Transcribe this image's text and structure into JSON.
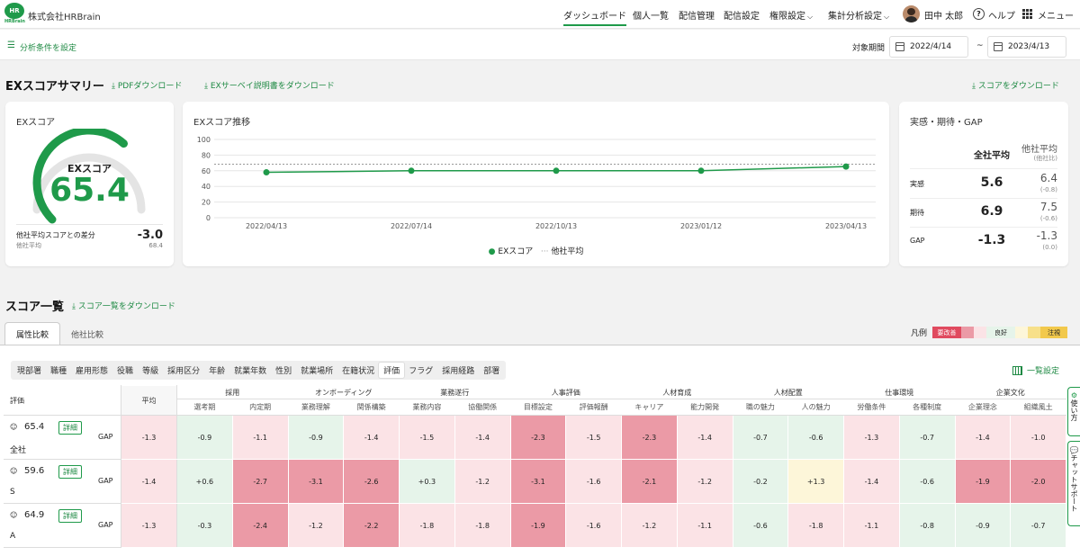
{
  "header": {
    "logo_text": "HR",
    "logo_sub": "HRBrain",
    "company": "株式会社HRBrain",
    "nav": [
      "ダッシュボード",
      "個人一覧",
      "配信管理",
      "配信設定",
      "権限設定",
      "集計分析設定"
    ],
    "user": "田中 太郎",
    "help": "ヘルプ",
    "menu": "メニュー"
  },
  "filter": {
    "label": "分析条件を設定",
    "period_label": "対象期間",
    "start": "2022/4/14",
    "sep": "~",
    "end": "2023/4/13"
  },
  "summary": {
    "title": "EXスコアサマリー",
    "pdf": "PDFダウンロード",
    "manual": "EXサーベイ説明書をダウンロード",
    "score_dl": "スコアをダウンロード"
  },
  "ex_card": {
    "title": "EXスコア",
    "gauge_label": "EXスコア",
    "score": "65.4",
    "score_value": 65.4,
    "diff_label": "他社平均スコアとの差分",
    "diff_sub": "他社平均",
    "diff": "-3.0",
    "other_avg": "68.4"
  },
  "trend": {
    "title": "EXスコア推移",
    "legend_ex": "EXスコア",
    "legend_avg": "他社平均"
  },
  "chart_data": {
    "type": "line",
    "title": "EXスコア推移",
    "x": [
      "2022/04/13",
      "2022/07/14",
      "2022/10/13",
      "2023/01/12",
      "2023/04/13"
    ],
    "series": [
      {
        "name": "EXスコア",
        "values": [
          58,
          60,
          60,
          60,
          65.4
        ],
        "color": "#1f9a4a"
      },
      {
        "name": "他社平均",
        "values": [
          68.4,
          68.4,
          68.4,
          68.4,
          68.4
        ],
        "color": "#999999",
        "style": "dotted"
      }
    ],
    "ylim": [
      0,
      100
    ],
    "yticks": [
      0,
      20,
      40,
      60,
      80,
      100
    ],
    "grid": true,
    "legend": "bottom"
  },
  "reality": {
    "title": "実感・期待・GAP",
    "col1": "全社平均",
    "col2": "他社平均",
    "col2_sub": "(他社比)",
    "rows": [
      {
        "label": "実感",
        "value": "5.6",
        "other": "6.4",
        "diff": "(-0.8)"
      },
      {
        "label": "期待",
        "value": "6.9",
        "other": "7.5",
        "diff": "(-0.6)"
      },
      {
        "label": "GAP",
        "value": "-1.3",
        "other": "-1.3",
        "diff": "(0.0)"
      }
    ]
  },
  "score_list": {
    "title": "スコア一覧",
    "dl": "スコア一覧をダウンロード",
    "tabs": [
      "属性比較",
      "他社比較"
    ],
    "legend_label": "凡例",
    "legend_bad": "要改善",
    "legend_good": "良好",
    "legend_warn": "注視",
    "chips": [
      "現部署",
      "職種",
      "雇用形態",
      "役職",
      "等級",
      "採用区分",
      "年齢",
      "就業年数",
      "性別",
      "就業場所",
      "在籍状況",
      "評価",
      "フラグ",
      "採用経路",
      "部署"
    ],
    "active_chip": 11,
    "settings": "一覧設定",
    "first_col": "評価",
    "avg_col": "平均",
    "groups": [
      {
        "name": "採用",
        "cols": [
          "選考期",
          "内定期"
        ]
      },
      {
        "name": "オンボーディング",
        "cols": [
          "業務理解",
          "関係構築"
        ]
      },
      {
        "name": "業務遂行",
        "cols": [
          "業務内容",
          "協働関係"
        ]
      },
      {
        "name": "人事評価",
        "cols": [
          "目標設定",
          "評価報酬"
        ]
      },
      {
        "name": "人材育成",
        "cols": [
          "キャリア",
          "能力開発"
        ]
      },
      {
        "name": "人材配置",
        "cols": [
          "職の魅力",
          "人の魅力"
        ]
      },
      {
        "name": "仕事環境",
        "cols": [
          "労働条件",
          "各種制度"
        ]
      },
      {
        "name": "企業文化",
        "cols": [
          "企業理念",
          "組織風土"
        ]
      }
    ],
    "detail_label": "詳細",
    "gap_label": "GAP",
    "rows": [
      {
        "score": "65.4",
        "name": "全社",
        "avg": "-1.3",
        "cells": [
          "-0.9",
          "-1.1",
          "-0.9",
          "-1.4",
          "-1.5",
          "-1.4",
          "-2.3",
          "-1.5",
          "-2.3",
          "-1.4",
          "-0.7",
          "-0.6",
          "-1.3",
          "-0.7",
          "-1.4",
          "-1.0"
        ]
      },
      {
        "score": "59.6",
        "name": "S",
        "avg": "-1.4",
        "cells": [
          "+0.6",
          "-2.7",
          "-3.1",
          "-2.6",
          "+0.3",
          "-1.2",
          "-3.1",
          "-1.6",
          "-2.1",
          "-1.2",
          "-0.2",
          "+1.3",
          "-1.4",
          "-0.6",
          "-1.9",
          "-2.0"
        ]
      },
      {
        "score": "64.9",
        "name": "A",
        "avg": "-1.3",
        "cells": [
          "-0.3",
          "-2.4",
          "-1.2",
          "-2.2",
          "-1.8",
          "-1.8",
          "-1.9",
          "-1.6",
          "-1.2",
          "-1.1",
          "-0.6",
          "-1.8",
          "-1.1",
          "-0.8",
          "-0.9",
          "-0.7"
        ]
      }
    ]
  },
  "side": {
    "guide": "使い方",
    "chat": "チャットサポート"
  },
  "colors": {
    "accent": "#1f9a4a",
    "bad_strong": "#eb9aa6",
    "bad_light": "#fbe3e6",
    "good": "#e6f4ea",
    "warn": "#fdf6d9",
    "legend_bad": "#e04a5f",
    "legend_warn": "#f2c94c"
  }
}
